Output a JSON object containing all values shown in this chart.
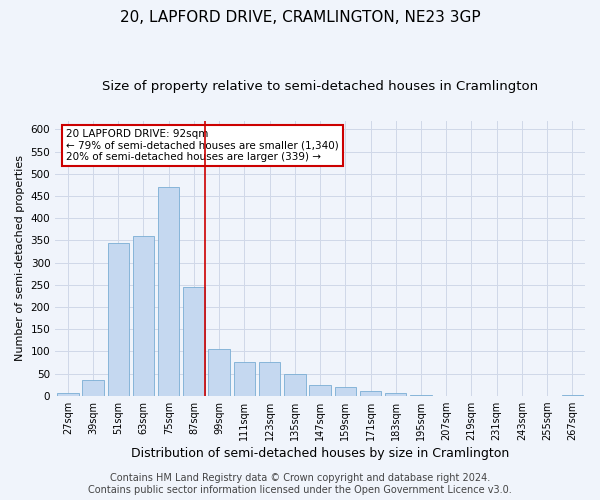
{
  "title": "20, LAPFORD DRIVE, CRAMLINGTON, NE23 3GP",
  "subtitle": "Size of property relative to semi-detached houses in Cramlington",
  "xlabel": "Distribution of semi-detached houses by size in Cramlington",
  "ylabel": "Number of semi-detached properties",
  "categories": [
    "27sqm",
    "39sqm",
    "51sqm",
    "63sqm",
    "75sqm",
    "87sqm",
    "99sqm",
    "111sqm",
    "123sqm",
    "135sqm",
    "147sqm",
    "159sqm",
    "171sqm",
    "183sqm",
    "195sqm",
    "207sqm",
    "219sqm",
    "231sqm",
    "243sqm",
    "255sqm",
    "267sqm"
  ],
  "values": [
    5,
    35,
    345,
    360,
    470,
    245,
    105,
    75,
    75,
    50,
    25,
    20,
    10,
    5,
    1,
    0,
    0,
    0,
    0,
    0,
    2
  ],
  "bar_color": "#c5d8f0",
  "bar_edge_color": "#7aadd4",
  "ylim": [
    0,
    620
  ],
  "yticks": [
    0,
    50,
    100,
    150,
    200,
    250,
    300,
    350,
    400,
    450,
    500,
    550,
    600
  ],
  "vline_x": 5.42,
  "vline_color": "#cc0000",
  "annotation_text": "20 LAPFORD DRIVE: 92sqm\n← 79% of semi-detached houses are smaller (1,340)\n20% of semi-detached houses are larger (339) →",
  "annotation_box_color": "#ffffff",
  "annotation_box_edge_color": "#cc0000",
  "footer_text": "Contains HM Land Registry data © Crown copyright and database right 2024.\nContains public sector information licensed under the Open Government Licence v3.0.",
  "bg_color": "#f0f4fb",
  "grid_color": "#d0d8e8",
  "title_fontsize": 11,
  "subtitle_fontsize": 9.5,
  "xlabel_fontsize": 9,
  "ylabel_fontsize": 8,
  "footer_fontsize": 7
}
